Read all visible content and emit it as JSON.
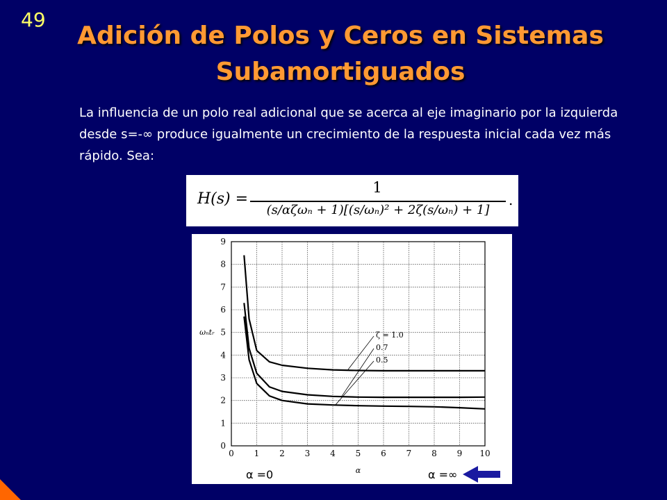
{
  "slide": {
    "number": "49",
    "title": "Adición de Polos y Ceros en Sistemas Subamortiguados",
    "paragraph": "La influencia de un polo real adicional que se acerca al eje imaginario por la izquierda desde s=-∞ produce igualmente un crecimiento de la respuesta inicial cada vez más rápido. Sea:"
  },
  "formula": {
    "lhs": "H(s) =",
    "numerator": "1",
    "denominator": "(s/αζωₙ + 1)[(s/ωₙ)² + 2ζ(s/ωₙ) + 1]",
    "trailing": "."
  },
  "colors": {
    "background": "#000066",
    "title": "#ff9933",
    "slide_number": "#ffff66",
    "text": "#ffffff",
    "arrow": "#1a1aa0",
    "corner": "#ff6600"
  },
  "annotations": {
    "alpha_zero": "α =0",
    "alpha_inf": "α =∞"
  },
  "chart_data": {
    "type": "line",
    "xlabel": "α",
    "ylabel": "ωₙtᵣ",
    "xlim": [
      0,
      10
    ],
    "ylim": [
      0,
      9
    ],
    "xticks": [
      0,
      1,
      2,
      3,
      4,
      5,
      6,
      7,
      8,
      9,
      10
    ],
    "yticks": [
      0,
      1,
      2,
      3,
      4,
      5,
      6,
      7,
      8,
      9
    ],
    "grid": true,
    "series": [
      {
        "name": "ζ = 1.0",
        "x": [
          0.5,
          0.7,
          1.0,
          1.5,
          2,
          3,
          4,
          5,
          6,
          7,
          8,
          9,
          10
        ],
        "y": [
          8.4,
          5.6,
          4.2,
          3.7,
          3.55,
          3.42,
          3.35,
          3.32,
          3.31,
          3.31,
          3.31,
          3.31,
          3.31
        ]
      },
      {
        "name": "0.7",
        "x": [
          0.5,
          0.7,
          1.0,
          1.5,
          2,
          3,
          4,
          5,
          6,
          7,
          8,
          9,
          10
        ],
        "y": [
          6.3,
          4.3,
          3.2,
          2.6,
          2.4,
          2.25,
          2.18,
          2.15,
          2.14,
          2.14,
          2.14,
          2.14,
          2.15
        ]
      },
      {
        "name": "0.5",
        "x": [
          0.5,
          0.7,
          1.0,
          1.5,
          2,
          3,
          4,
          5,
          6,
          7,
          8,
          9,
          10
        ],
        "y": [
          5.7,
          3.8,
          2.75,
          2.2,
          2.0,
          1.85,
          1.8,
          1.77,
          1.75,
          1.74,
          1.72,
          1.68,
          1.63
        ]
      }
    ]
  }
}
